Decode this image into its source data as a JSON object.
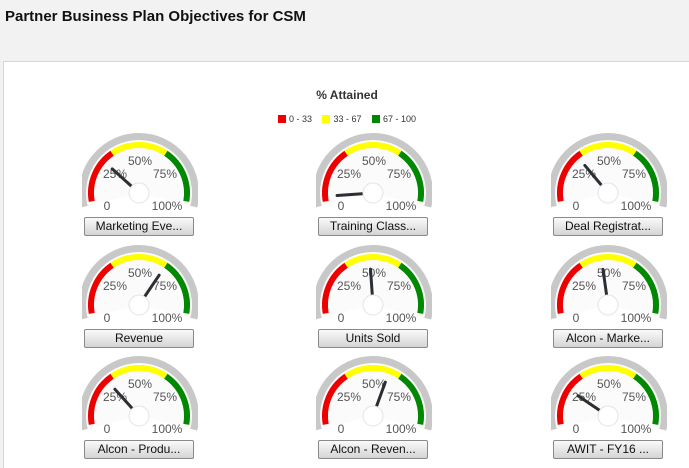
{
  "header": {
    "title": "Partner Business Plan Objectives for CSM"
  },
  "chart": {
    "title": "% Attained",
    "legend": [
      {
        "label": "0 - 33",
        "color": "#ee0000"
      },
      {
        "label": "33 - 67",
        "color": "#ffff00"
      },
      {
        "label": "67 - 100",
        "color": "#008800"
      }
    ],
    "tick_labels": {
      "t0": "0",
      "t25": "25%",
      "t50": "50%",
      "t75": "75%",
      "t100": "100%"
    }
  },
  "chart_data": {
    "type": "gauge",
    "title": "% Attained",
    "range": [
      0,
      100
    ],
    "bands": [
      {
        "from": 0,
        "to": 33,
        "color": "#ee0000"
      },
      {
        "from": 33,
        "to": 67,
        "color": "#ffff00"
      },
      {
        "from": 67,
        "to": 100,
        "color": "#008800"
      }
    ],
    "gauges": [
      {
        "label": "Marketing Eve...",
        "value": 26
      },
      {
        "label": "Training Class...",
        "value": 3
      },
      {
        "label": "Deal Registrat...",
        "value": 30
      },
      {
        "label": "Revenue",
        "value": 67
      },
      {
        "label": "Units Sold",
        "value": 48
      },
      {
        "label": "Alcon - Marke...",
        "value": 46
      },
      {
        "label": "Alcon - Produ...",
        "value": 29
      },
      {
        "label": "Alcon - Reven...",
        "value": 60
      },
      {
        "label": "AWIT - FY16 ...",
        "value": 22
      }
    ]
  }
}
